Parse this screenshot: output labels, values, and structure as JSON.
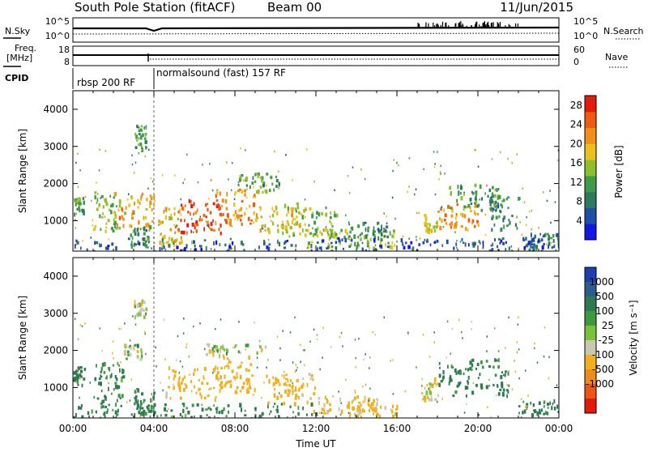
{
  "header": {
    "station": "South Pole Station (fitACF)",
    "beam": "Beam 00",
    "date": "11/Jun/2015"
  },
  "summary_panels": {
    "nsky_label": "N.Sky",
    "nsky_ticks": [
      "10^5",
      "10^0"
    ],
    "nsearch_label": "N.Search",
    "nsearch_ticks": [
      "10^5",
      "10^0"
    ],
    "freq_label_1": "Freq.",
    "freq_label_2": "[MHz]",
    "freq_ticks": [
      "18",
      "8"
    ],
    "nave_label": "Nave",
    "nave_ticks": [
      "60",
      "0"
    ],
    "cpid_label": "CPID",
    "cpid_segments": [
      {
        "label": "rbsp 200 RF",
        "start_hour": 0,
        "end_hour": 4
      },
      {
        "label": "normalsound (fast) 157 RF",
        "start_hour": 4,
        "end_hour": 24
      }
    ]
  },
  "chart_data": [
    {
      "type": "heatmap",
      "name": "power",
      "xlabel": "",
      "ylabel": "Slant Range [km]",
      "xlim": [
        0,
        24
      ],
      "ylim": [
        180,
        4500
      ],
      "yticks": [
        1000,
        2000,
        3000,
        4000
      ],
      "colorbar": {
        "label": "Power [dB]",
        "ticks": [
          4,
          8,
          12,
          16,
          20,
          24,
          28
        ],
        "range": [
          0,
          30
        ],
        "colors": [
          "#1515e6",
          "#1f4fa8",
          "#2e7a5c",
          "#3f9a4a",
          "#8fbf2a",
          "#e8c21a",
          "#f0901a",
          "#ee5a12",
          "#e51a0e"
        ]
      },
      "blobs": [
        {
          "t": [
            0.0,
            0.5
          ],
          "r": [
            1150,
            1650
          ],
          "v": 12
        },
        {
          "t": [
            1.0,
            2.3
          ],
          "r": [
            700,
            1800
          ],
          "v": 14
        },
        {
          "t": [
            2.0,
            4.0
          ],
          "r": [
            800,
            1800
          ],
          "v": 20
        },
        {
          "t": [
            2.8,
            3.8
          ],
          "r": [
            300,
            900
          ],
          "v": 10
        },
        {
          "t": [
            3.0,
            3.6
          ],
          "r": [
            2950,
            3600
          ],
          "v": 12
        },
        {
          "t": [
            4.2,
            5.4
          ],
          "r": [
            400,
            1400
          ],
          "v": 18
        },
        {
          "t": [
            5.0,
            7.3
          ],
          "r": [
            700,
            1600
          ],
          "v": 25
        },
        {
          "t": [
            7.0,
            9.0
          ],
          "r": [
            900,
            1900
          ],
          "v": 22
        },
        {
          "t": [
            9.0,
            11.5
          ],
          "r": [
            700,
            1500
          ],
          "v": 18
        },
        {
          "t": [
            10.5,
            13.0
          ],
          "r": [
            600,
            1400
          ],
          "v": 14
        },
        {
          "t": [
            8.0,
            10.2
          ],
          "r": [
            1800,
            2300
          ],
          "v": 12
        },
        {
          "t": [
            11.5,
            16.0
          ],
          "r": [
            300,
            800
          ],
          "v": 15
        },
        {
          "t": [
            13.5,
            15.5
          ],
          "r": [
            500,
            1000
          ],
          "v": 10
        },
        {
          "t": [
            17.2,
            18.0
          ],
          "r": [
            700,
            1200
          ],
          "v": 18
        },
        {
          "t": [
            18.0,
            20.0
          ],
          "r": [
            800,
            1500
          ],
          "v": 21
        },
        {
          "t": [
            18.5,
            21.0
          ],
          "r": [
            1300,
            2000
          ],
          "v": 12
        },
        {
          "t": [
            20.5,
            22.0
          ],
          "r": [
            800,
            1700
          ],
          "v": 10
        },
        {
          "t": [
            22.2,
            24.0
          ],
          "r": [
            300,
            700
          ],
          "v": 8
        },
        {
          "t": [
            0.0,
            24.0
          ],
          "r": [
            200,
            550
          ],
          "v": 6
        }
      ]
    },
    {
      "type": "heatmap",
      "name": "velocity",
      "xlabel": "Time UT",
      "ylabel": "Slant Range [km]",
      "xlim": [
        0,
        24
      ],
      "ylim": [
        180,
        4500
      ],
      "xticks": [
        "00:00",
        "04:00",
        "08:00",
        "12:00",
        "16:00",
        "20:00",
        "00:00"
      ],
      "yticks": [
        1000,
        2000,
        3000,
        4000
      ],
      "colorbar": {
        "label": "Velocity [m s⁻¹]",
        "ticks": [
          "1000",
          "500",
          "100",
          "25",
          "-25",
          "-100",
          "-500",
          "-1000"
        ],
        "colors": [
          "#1f3fb0",
          "#2e5c8f",
          "#2f7a52",
          "#3e9a3e",
          "#79c23a",
          "#c8c8b0",
          "#f0b020",
          "#f08a18",
          "#ee5512",
          "#e51a0e"
        ]
      },
      "blobs": [
        {
          "t": [
            0.0,
            0.6
          ],
          "r": [
            1100,
            1600
          ],
          "v": 200
        },
        {
          "t": [
            1.0,
            2.5
          ],
          "r": [
            500,
            1700
          ],
          "v": 150
        },
        {
          "t": [
            2.5,
            3.4
          ],
          "r": [
            1800,
            2200
          ],
          "v": 0
        },
        {
          "t": [
            3.0,
            4.0
          ],
          "r": [
            300,
            1000
          ],
          "v": 150
        },
        {
          "t": [
            3.0,
            3.6
          ],
          "r": [
            2900,
            3400
          ],
          "v": -60
        },
        {
          "t": [
            4.5,
            7.5
          ],
          "r": [
            700,
            1600
          ],
          "v": -200
        },
        {
          "t": [
            7.0,
            9.0
          ],
          "r": [
            900,
            1900
          ],
          "v": -300
        },
        {
          "t": [
            6.5,
            9.5
          ],
          "r": [
            1900,
            2200
          ],
          "v": -20
        },
        {
          "t": [
            9.5,
            12.0
          ],
          "r": [
            600,
            1400
          ],
          "v": -200
        },
        {
          "t": [
            11.5,
            15.0
          ],
          "r": [
            300,
            800
          ],
          "v": -150
        },
        {
          "t": [
            13.5,
            16.0
          ],
          "r": [
            250,
            650
          ],
          "v": -200
        },
        {
          "t": [
            0.0,
            12.0
          ],
          "r": [
            200,
            600
          ],
          "v": 150
        },
        {
          "t": [
            17.2,
            18.0
          ],
          "r": [
            700,
            1300
          ],
          "v": -120
        },
        {
          "t": [
            18.0,
            21.5
          ],
          "r": [
            800,
            1800
          ],
          "v": 200
        },
        {
          "t": [
            22.0,
            24.0
          ],
          "r": [
            300,
            700
          ],
          "v": 200
        }
      ]
    }
  ]
}
